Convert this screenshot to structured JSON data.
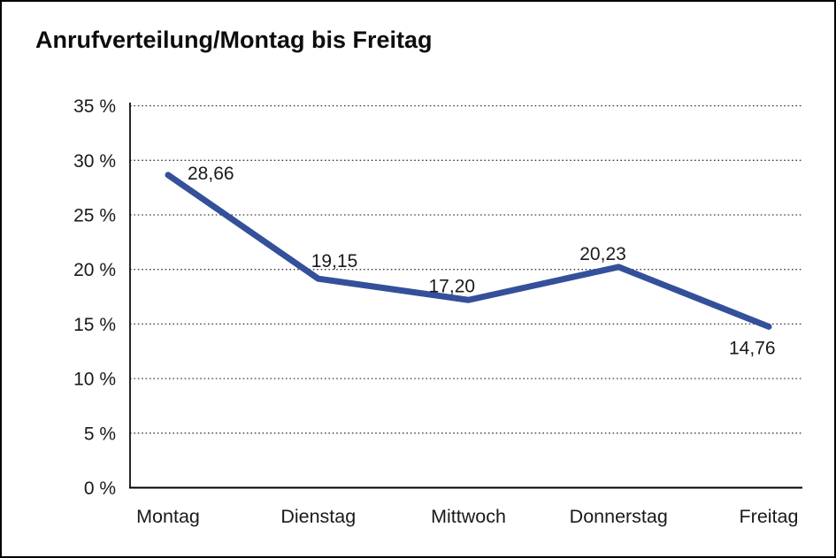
{
  "chart_data": {
    "type": "line",
    "title": "Anrufverteilung/Montag bis Freitag",
    "xlabel": "",
    "ylabel": "",
    "categories": [
      "Montag",
      "Dienstag",
      "Mittwoch",
      "Donnerstag",
      "Freitag"
    ],
    "values": [
      28.66,
      19.15,
      17.2,
      20.23,
      14.76
    ],
    "value_labels": [
      "28,66",
      "19,15",
      "17,20",
      "20,23",
      "14,76"
    ],
    "series_name": "Anrufverteilung",
    "ylim": [
      0,
      35
    ],
    "y_tick_step": 5,
    "y_ticks": [
      {
        "value": 0,
        "label": "0 %"
      },
      {
        "value": 5,
        "label": "5 %"
      },
      {
        "value": 10,
        "label": "10 %"
      },
      {
        "value": 15,
        "label": "15 %"
      },
      {
        "value": 20,
        "label": "20 %"
      },
      {
        "value": 25,
        "label": "25 %"
      },
      {
        "value": 30,
        "label": "30 %"
      },
      {
        "value": 35,
        "label": "35 %"
      }
    ],
    "grid": "horizontal-dotted",
    "legend": "none",
    "colors": {
      "line": "#34509B",
      "axis": "#000000",
      "gridline": "#3d3d3d",
      "text": "#1a1a1a",
      "background": "#ffffff",
      "frame_border": "#000000"
    }
  }
}
